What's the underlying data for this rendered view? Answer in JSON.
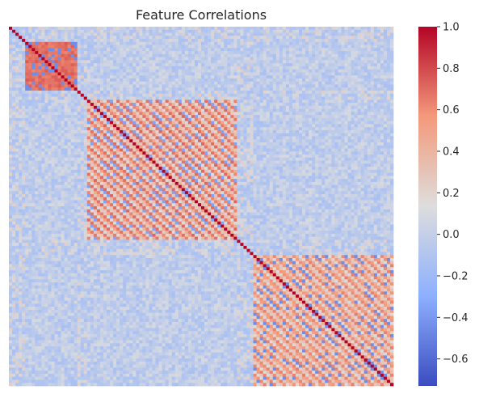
{
  "chart_data": {
    "type": "heatmap",
    "title": "Feature Correlations",
    "xlabel": "",
    "ylabel": "",
    "n_features": 118,
    "colormap": "coolwarm",
    "colorbar": {
      "vmin": -0.73,
      "vmax": 1.0,
      "ticks": [
        1.0,
        0.8,
        0.6,
        0.4,
        0.2,
        0.0,
        -0.2,
        -0.4,
        -0.6
      ],
      "tick_labels": [
        "1.0",
        "0.8",
        "0.6",
        "0.4",
        "0.2",
        "0.0",
        "−0.2",
        "−0.4",
        "−0.6"
      ]
    },
    "diagonal_value": 1.0,
    "blocks": [
      {
        "name": "block-1",
        "start": 5,
        "end": 20,
        "pattern": "dense",
        "values": [
          0.75,
          0.6,
          -0.45
        ]
      },
      {
        "name": "block-2",
        "start": 24,
        "end": 69,
        "pattern": "diagonal-stripes",
        "values": [
          0.72,
          0.45,
          -0.35
        ]
      },
      {
        "name": "block-3",
        "start": 75,
        "end": 117,
        "pattern": "diagonal-stripes",
        "values": [
          0.65,
          0.45,
          -0.45
        ]
      }
    ],
    "background_range": [
      -0.15,
      0.1
    ],
    "grid": false,
    "legend": "none"
  }
}
